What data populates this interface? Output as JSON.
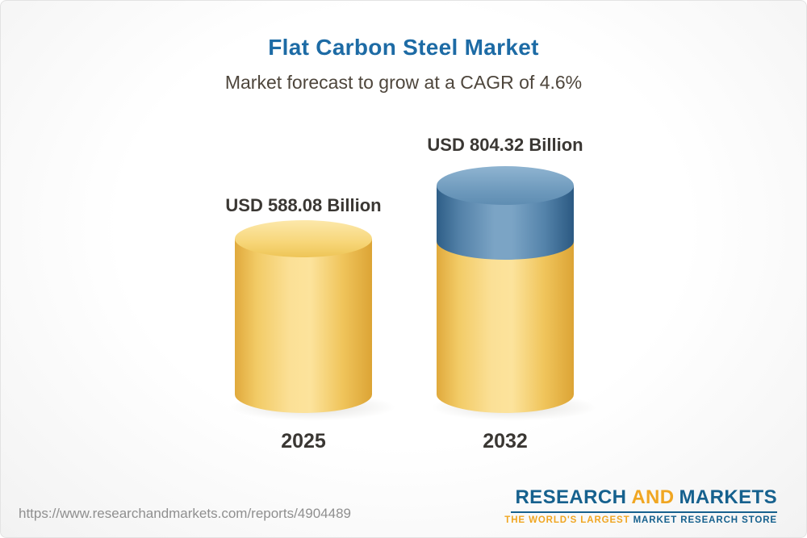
{
  "header": {
    "title": "Flat Carbon Steel Market",
    "subtitle": "Market forecast to grow at a CAGR of 4.6%"
  },
  "chart_data": {
    "type": "bar",
    "title": "Flat Carbon Steel Market",
    "subtitle": "Market forecast to grow at a CAGR of 4.6%",
    "unit": "USD Billion",
    "cagr_percent": 4.6,
    "categories": [
      "2025",
      "2032"
    ],
    "values": [
      588.08,
      804.32
    ],
    "value_labels": [
      "USD 588.08 Billion",
      "USD 804.32 Billion"
    ],
    "grid": false,
    "legend_position": "none",
    "bars": [
      {
        "category": "2025",
        "value": 588.08,
        "label": "USD 588.08 Billion",
        "segment_colors": [
          "#f5cf6e"
        ]
      },
      {
        "category": "2032",
        "value": 804.32,
        "label": "USD 804.32 Billion",
        "segment_colors": [
          "#5b8cb2",
          "#f5cf6e"
        ]
      }
    ],
    "colors": {
      "base_bar": "#f5cf6e",
      "growth_segment": "#5b8cb2",
      "title_blue": "#1d6ba5",
      "subtitle_text": "#4e463c",
      "label_text": "#3a3733"
    }
  },
  "footer": {
    "url": "https://www.researchandmarkets.com/reports/4904489",
    "logo": {
      "research": "RESEARCH",
      "and": "AND",
      "markets": "MARKETS",
      "tagline_gold": "THE WORLD'S LARGEST",
      "tagline_blue": "MARKET RESEARCH STORE",
      "brand_blue": "#16618e",
      "brand_gold": "#f0a622"
    }
  }
}
